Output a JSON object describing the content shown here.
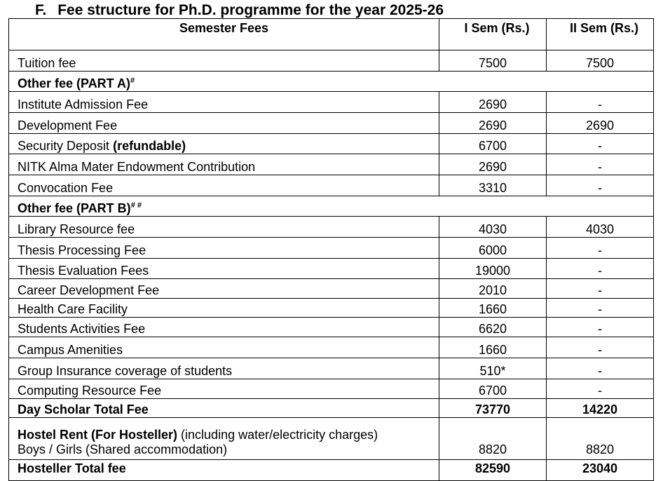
{
  "title": {
    "letter": "F.",
    "text": "Fee structure for Ph.D. programme for the year 2025-26"
  },
  "header": {
    "col1": "Semester Fees",
    "col2": "I Sem (Rs.)",
    "col3": "II Sem (Rs.)"
  },
  "rows": [
    {
      "type": "item",
      "label": "Tuition fee",
      "sem1": "7500",
      "sem2": "7500"
    },
    {
      "type": "section",
      "label": "Other fee (PART A)",
      "sup": "#"
    },
    {
      "type": "item",
      "label": "Institute Admission Fee",
      "sem1": "2690",
      "sem2": "-"
    },
    {
      "type": "item",
      "label": "Development Fee",
      "sem1": "2690",
      "sem2": "2690"
    },
    {
      "type": "item",
      "label": "Security Deposit",
      "bold_suffix": "(refundable)",
      "sem1": "6700",
      "sem2": "-"
    },
    {
      "type": "item",
      "label": "NITK Alma Mater Endowment Contribution",
      "sem1": "2690",
      "sem2": "-"
    },
    {
      "type": "item",
      "label": "Convocation Fee",
      "sem1": "3310",
      "sem2": "-"
    },
    {
      "type": "section",
      "label": "Other fee (PART B)",
      "sup": "# #"
    },
    {
      "type": "item",
      "label": "Library Resource fee",
      "sem1": "4030",
      "sem2": "4030"
    },
    {
      "type": "item",
      "label": "Thesis Processing Fee",
      "sem1": "6000",
      "sem2": "-"
    },
    {
      "type": "item",
      "label": "Thesis Evaluation Fees",
      "sem1": "19000",
      "sem2": "-"
    },
    {
      "type": "item",
      "label": "Career Development Fee",
      "sem1": "2010",
      "sem2": "-"
    },
    {
      "type": "item",
      "label": "Health Care Facility",
      "sem1": "1660",
      "sem2": "-"
    },
    {
      "type": "item",
      "label": "Students Activities Fee",
      "sem1": "6620",
      "sem2": "-"
    },
    {
      "type": "item",
      "label": "Campus Amenities",
      "sem1": "1660",
      "sem2": "-"
    },
    {
      "type": "item",
      "label": "Group Insurance coverage of students",
      "sem1": "510*",
      "sem2": "-"
    },
    {
      "type": "item",
      "label": "Computing Resource Fee",
      "sem1": "6700",
      "sem2": "-"
    },
    {
      "type": "total",
      "label": "Day Scholar Total Fee",
      "sem1": "73770",
      "sem2": "14220"
    }
  ],
  "hostel": {
    "bold_label": "Hostel Rent (For Hosteller)",
    "note": "(including water/electricity charges)",
    "sub_label": "Boys  / Girls (Shared  accommodation)",
    "sem1": "8820",
    "sem2": "8820"
  },
  "hosteller_total": {
    "label": "Hosteller Total fee",
    "sem1": "82590",
    "sem2": "23040"
  }
}
